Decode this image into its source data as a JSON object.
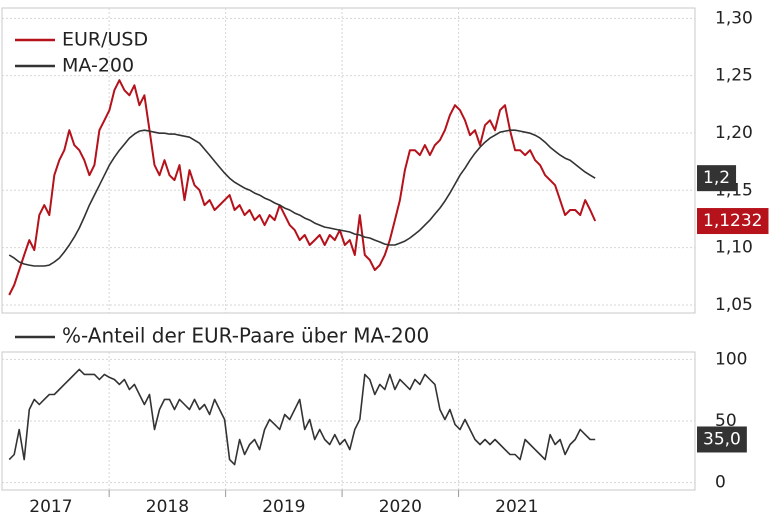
{
  "chart_data": [
    {
      "type": "line",
      "x": [
        2017.142,
        2017.185,
        2017.228,
        2017.271,
        2017.314,
        2017.357,
        2017.4,
        2017.443,
        2017.486,
        2017.529,
        2017.572,
        2017.615,
        2017.658,
        2017.701,
        2017.744,
        2017.787,
        2017.83,
        2017.873,
        2017.916,
        2017.959,
        2018.002,
        2018.045,
        2018.088,
        2018.131,
        2018.174,
        2018.217,
        2018.26,
        2018.303,
        2018.346,
        2018.389,
        2018.432,
        2018.475,
        2018.518,
        2018.561,
        2018.604,
        2018.647,
        2018.69,
        2018.733,
        2018.776,
        2018.819,
        2018.862,
        2018.905,
        2018.948,
        2018.991,
        2019.034,
        2019.077,
        2019.12,
        2019.163,
        2019.206,
        2019.249,
        2019.292,
        2019.335,
        2019.378,
        2019.421,
        2019.464,
        2019.507,
        2019.55,
        2019.593,
        2019.636,
        2019.679,
        2019.722,
        2019.765,
        2019.808,
        2019.851,
        2019.894,
        2019.937,
        2019.98,
        2020.023,
        2020.066,
        2020.109,
        2020.152,
        2020.195,
        2020.238,
        2020.281,
        2020.324,
        2020.367,
        2020.41,
        2020.453,
        2020.496,
        2020.539,
        2020.582,
        2020.625,
        2020.668,
        2020.711,
        2020.754,
        2020.797,
        2020.84,
        2020.883,
        2020.926,
        2020.969,
        2021.012,
        2021.055,
        2021.098,
        2021.141,
        2021.184,
        2021.227,
        2021.27,
        2021.313,
        2021.356,
        2021.399,
        2021.442,
        2021.485,
        2021.528,
        2021.571,
        2021.614,
        2021.657,
        2021.7,
        2021.743,
        2021.786,
        2021.829,
        2021.872,
        2021.915,
        2021.958,
        2022.001,
        2022.044,
        2022.087,
        2022.13,
        2022.173
      ],
      "xlim": [
        2017.08,
        2023.03
      ],
      "xticks": [
        2017,
        2018,
        2019,
        2020,
        2021
      ],
      "ylim": [
        1.043,
        1.309
      ],
      "yticks": [
        {
          "value": 1.05,
          "label": "1,05"
        },
        {
          "value": 1.1,
          "label": "1,10"
        },
        {
          "value": 1.15,
          "label": "1,15"
        },
        {
          "value": 1.2,
          "label": "1,20"
        },
        {
          "value": 1.25,
          "label": "1,25"
        },
        {
          "value": 1.3,
          "label": "1,30"
        }
      ],
      "grid": true,
      "legend": "upper left",
      "series": [
        {
          "name": "EUR/USD",
          "color": "#b5121b",
          "last_value_label": "1,1232",
          "values": [
            1.0587,
            1.0674,
            1.0805,
            1.0936,
            1.1066,
            1.0979,
            1.1284,
            1.1371,
            1.1284,
            1.1632,
            1.1763,
            1.185,
            1.2024,
            1.1894,
            1.185,
            1.1763,
            1.1632,
            1.172,
            1.2024,
            1.2111,
            1.2199,
            1.2373,
            1.246,
            1.2373,
            1.2329,
            1.2416,
            1.2242,
            1.2329,
            1.2024,
            1.172,
            1.1632,
            1.1763,
            1.1632,
            1.1589,
            1.172,
            1.1415,
            1.1676,
            1.1545,
            1.1502,
            1.1371,
            1.1415,
            1.1328,
            1.1371,
            1.1415,
            1.1458,
            1.1328,
            1.1371,
            1.1284,
            1.1328,
            1.124,
            1.1284,
            1.1197,
            1.1284,
            1.124,
            1.1371,
            1.1284,
            1.1197,
            1.1153,
            1.1066,
            1.111,
            1.1023,
            1.1066,
            1.111,
            1.1023,
            1.111,
            1.1066,
            1.1153,
            1.1023,
            1.1066,
            1.0936,
            1.1284,
            1.0936,
            1.0892,
            1.0805,
            1.0848,
            1.0936,
            1.1066,
            1.124,
            1.1415,
            1.1676,
            1.185,
            1.185,
            1.1807,
            1.1894,
            1.1807,
            1.1894,
            1.1937,
            1.2024,
            1.2155,
            1.2242,
            1.2199,
            1.2111,
            1.1981,
            1.2024,
            1.1894,
            1.2068,
            1.2111,
            1.2024,
            1.2199,
            1.2242,
            1.2024,
            1.185,
            1.185,
            1.1807,
            1.185,
            1.1763,
            1.172,
            1.1632,
            1.1589,
            1.1545,
            1.1415,
            1.1284,
            1.1328,
            1.1328,
            1.1284,
            1.1415,
            1.1328,
            1.1232
          ]
        },
        {
          "name": "MA-200",
          "color": "#333333",
          "last_value_label": "1,2",
          "values": [
            1.0936,
            1.0909,
            1.0875,
            1.0857,
            1.0848,
            1.084,
            1.084,
            1.084,
            1.0848,
            1.0875,
            1.0909,
            1.0962,
            1.1023,
            1.1092,
            1.1171,
            1.1267,
            1.1371,
            1.1458,
            1.1545,
            1.1632,
            1.172,
            1.1789,
            1.185,
            1.1902,
            1.1955,
            1.199,
            1.2016,
            1.2024,
            1.2016,
            1.2007,
            1.1998,
            1.1998,
            1.199,
            1.199,
            1.1981,
            1.1972,
            1.1963,
            1.1937,
            1.1911,
            1.1859,
            1.1807,
            1.1754,
            1.1702,
            1.165,
            1.1606,
            1.1571,
            1.1545,
            1.1519,
            1.1502,
            1.1476,
            1.1458,
            1.1432,
            1.1415,
            1.1389,
            1.1371,
            1.1345,
            1.1328,
            1.1301,
            1.1284,
            1.1258,
            1.124,
            1.1214,
            1.1197,
            1.1179,
            1.1171,
            1.1162,
            1.1153,
            1.1145,
            1.1136,
            1.1118,
            1.111,
            1.1092,
            1.1084,
            1.1066,
            1.1049,
            1.1031,
            1.1023,
            1.1023,
            1.104,
            1.1057,
            1.1084,
            1.1118,
            1.1153,
            1.1197,
            1.124,
            1.1293,
            1.1345,
            1.1406,
            1.1476,
            1.1554,
            1.1632,
            1.1693,
            1.1763,
            1.1824,
            1.1876,
            1.192,
            1.1955,
            1.1981,
            1.2007,
            1.2016,
            1.2024,
            1.2024,
            1.2016,
            1.2007,
            1.1998,
            1.1981,
            1.1955,
            1.192,
            1.1876,
            1.1841,
            1.1807,
            1.178,
            1.1763,
            1.1728,
            1.1693,
            1.1659,
            1.1632,
            1.1606
          ]
        }
      ]
    },
    {
      "type": "line",
      "x": [
        2017.142,
        2017.185,
        2017.228,
        2017.271,
        2017.314,
        2017.357,
        2017.4,
        2017.443,
        2017.486,
        2017.529,
        2017.572,
        2017.615,
        2017.658,
        2017.701,
        2017.744,
        2017.787,
        2017.83,
        2017.873,
        2017.916,
        2017.959,
        2018.002,
        2018.045,
        2018.088,
        2018.131,
        2018.174,
        2018.217,
        2018.26,
        2018.303,
        2018.346,
        2018.389,
        2018.432,
        2018.475,
        2018.518,
        2018.561,
        2018.604,
        2018.647,
        2018.69,
        2018.733,
        2018.776,
        2018.819,
        2018.862,
        2018.905,
        2018.948,
        2018.991,
        2019.034,
        2019.077,
        2019.12,
        2019.163,
        2019.206,
        2019.249,
        2019.292,
        2019.335,
        2019.378,
        2019.421,
        2019.464,
        2019.507,
        2019.55,
        2019.593,
        2019.636,
        2019.679,
        2019.722,
        2019.765,
        2019.808,
        2019.851,
        2019.894,
        2019.937,
        2019.98,
        2020.023,
        2020.066,
        2020.109,
        2020.152,
        2020.195,
        2020.238,
        2020.281,
        2020.324,
        2020.367,
        2020.41,
        2020.453,
        2020.496,
        2020.539,
        2020.582,
        2020.625,
        2020.668,
        2020.711,
        2020.754,
        2020.797,
        2020.84,
        2020.883,
        2020.926,
        2020.969,
        2021.012,
        2021.055,
        2021.098,
        2021.141,
        2021.184,
        2021.227,
        2021.27,
        2021.313,
        2021.356,
        2021.399,
        2021.442,
        2021.485,
        2021.528,
        2021.571,
        2021.614,
        2021.657,
        2021.7,
        2021.743,
        2021.786,
        2021.829,
        2021.872,
        2021.915,
        2021.958,
        2022.001,
        2022.044,
        2022.087,
        2022.13,
        2022.173
      ],
      "xlim": [
        2017.08,
        2023.03
      ],
      "xticks": [
        2017,
        2018,
        2019,
        2020,
        2021
      ],
      "ylim": [
        -6,
        106
      ],
      "yticks": [
        0,
        50,
        100
      ],
      "grid": true,
      "legend": "above",
      "series": [
        {
          "name": "%-Anteil der EUR-Paare über MA-200",
          "color": "#333333",
          "last_value_label": "35,0",
          "values": [
            18.7,
            22.8,
            43.1,
            18.7,
            59.3,
            67.5,
            63.4,
            67.5,
            71.5,
            71.5,
            75.6,
            79.7,
            83.7,
            87.8,
            91.9,
            87.8,
            87.8,
            87.8,
            83.7,
            87.8,
            85.4,
            83.7,
            79.7,
            83.7,
            75.6,
            79.7,
            71.5,
            63.4,
            71.5,
            43.1,
            59.3,
            67.5,
            67.5,
            59.3,
            67.5,
            63.4,
            59.3,
            67.5,
            59.3,
            63.4,
            55.3,
            67.5,
            59.3,
            51.2,
            18.7,
            14.6,
            35.0,
            22.8,
            30.9,
            35.0,
            26.8,
            43.1,
            51.2,
            47.2,
            43.1,
            55.3,
            51.2,
            59.3,
            67.5,
            43.1,
            51.2,
            35.0,
            43.1,
            35.0,
            30.9,
            39.0,
            30.9,
            35.0,
            26.8,
            43.1,
            51.2,
            87.8,
            83.7,
            71.5,
            79.7,
            75.6,
            87.8,
            75.6,
            83.7,
            79.7,
            75.6,
            83.7,
            79.7,
            87.8,
            83.7,
            79.7,
            59.3,
            51.2,
            59.3,
            47.2,
            43.1,
            51.2,
            43.1,
            35.0,
            30.9,
            35.0,
            30.9,
            35.0,
            30.9,
            26.8,
            22.8,
            22.8,
            18.7,
            35.0,
            30.9,
            26.8,
            22.8,
            18.7,
            39.0,
            30.9,
            35.0,
            22.8,
            30.9,
            35.0,
            43.1,
            39.0,
            35.0,
            35.0
          ]
        }
      ]
    }
  ]
}
